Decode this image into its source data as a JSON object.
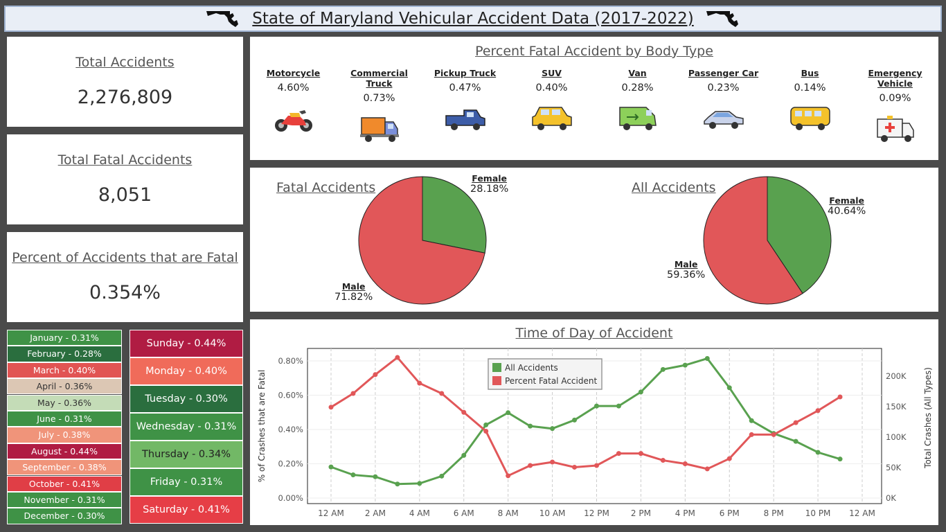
{
  "header": {
    "title": "State of Maryland Vehicular Accident Data (2017-2022)"
  },
  "kpis": {
    "total_accidents": {
      "label": "Total Accidents",
      "value": "2,276,809"
    },
    "total_fatal": {
      "label": "Total Fatal Accidents",
      "value": "8,051"
    },
    "percent_fatal": {
      "label": "Percent of Accidents that are Fatal",
      "value": "0.354%"
    }
  },
  "months": [
    {
      "label": "January - 0.31%",
      "color": "#3f9246"
    },
    {
      "label": "February - 0.28%",
      "color": "#2a6e3e"
    },
    {
      "label": "March - 0.40%",
      "color": "#e15453"
    },
    {
      "label": "April - 0.36%",
      "color": "#dcc7b4"
    },
    {
      "label": "May - 0.36%",
      "color": "#c4dcb7"
    },
    {
      "label": "June - 0.31%",
      "color": "#3f9246"
    },
    {
      "label": "July - 0.38%",
      "color": "#f0947a"
    },
    {
      "label": "August - 0.44%",
      "color": "#b01c43"
    },
    {
      "label": "September - 0.38%",
      "color": "#f0947a"
    },
    {
      "label": "October - 0.41%",
      "color": "#e03e46"
    },
    {
      "label": "November - 0.31%",
      "color": "#3f9246"
    },
    {
      "label": "December - 0.30%",
      "color": "#3f9246"
    }
  ],
  "days": [
    {
      "label": "Sunday - 0.44%",
      "color": "#b01c43"
    },
    {
      "label": "Monday - 0.40%",
      "color": "#f06b5a"
    },
    {
      "label": "Tuesday - 0.30%",
      "color": "#2a6e3e"
    },
    {
      "label": "Wednesday - 0.31%",
      "color": "#3f9246"
    },
    {
      "label": "Thursday - 0.34%",
      "color": "#72b866"
    },
    {
      "label": "Friday - 0.31%",
      "color": "#3f9246"
    },
    {
      "label": "Saturday - 0.41%",
      "color": "#e63e46"
    }
  ],
  "body_types": {
    "title": "Percent Fatal Accident by Body Type",
    "items": [
      {
        "name": "Motorcycle",
        "value": "4.60%",
        "icon": "motorcycle-icon"
      },
      {
        "name": "Commercial Truck",
        "value": "0.73%",
        "icon": "commercial-truck-icon"
      },
      {
        "name": "Pickup Truck",
        "value": "0.47%",
        "icon": "pickup-truck-icon"
      },
      {
        "name": "SUV",
        "value": "0.40%",
        "icon": "suv-icon"
      },
      {
        "name": "Van",
        "value": "0.28%",
        "icon": "van-icon"
      },
      {
        "name": "Passenger Car",
        "value": "0.23%",
        "icon": "passenger-car-icon"
      },
      {
        "name": "Bus",
        "value": "0.14%",
        "icon": "bus-icon"
      },
      {
        "name": "Emergency Vehicle",
        "value": "0.09%",
        "icon": "ambulance-icon"
      }
    ]
  },
  "pies": {
    "fatal": {
      "title": "Fatal Accidents",
      "female_label": "Female",
      "female_value": "28.18%",
      "male_label": "Male",
      "male_value": "71.82%"
    },
    "all": {
      "title": "All Accidents",
      "female_label": "Female",
      "female_value": "40.64%",
      "male_label": "Male",
      "male_value": "59.36%"
    }
  },
  "line_chart": {
    "title": "Time of Day of Accident",
    "ylabel_left": "% of Crashes that are Fatal",
    "ylabel_right": "Total Crashes (All Types)",
    "legend": [
      "All Accidents",
      "Percent Fatal Accident"
    ]
  },
  "chart_data": [
    {
      "type": "pie",
      "title": "Fatal Accidents",
      "categories": [
        "Female",
        "Male"
      ],
      "values": [
        28.18,
        71.82
      ],
      "colors": [
        "#59a14f",
        "#e15759"
      ]
    },
    {
      "type": "pie",
      "title": "All Accidents",
      "categories": [
        "Female",
        "Male"
      ],
      "values": [
        40.64,
        59.36
      ],
      "colors": [
        "#59a14f",
        "#e15759"
      ]
    },
    {
      "type": "line",
      "title": "Time of Day of Accident",
      "x": [
        "12 AM",
        "1 AM",
        "2 AM",
        "3 AM",
        "4 AM",
        "5 AM",
        "6 AM",
        "7 AM",
        "8 AM",
        "9 AM",
        "10 AM",
        "11 AM",
        "12 PM",
        "1 PM",
        "2 PM",
        "3 PM",
        "4 PM",
        "5 PM",
        "6 PM",
        "7 PM",
        "8 PM",
        "9 PM",
        "10 PM",
        "11 PM"
      ],
      "x_tick_labels": [
        "12 AM",
        "2 AM",
        "4 AM",
        "6 AM",
        "8 AM",
        "10 AM",
        "12 PM",
        "2 PM",
        "4 PM",
        "6 PM",
        "8 PM",
        "10 PM",
        "12 AM"
      ],
      "series": [
        {
          "name": "All Accidents",
          "axis": "right",
          "color": "#59a14f",
          "values": [
            51000,
            38000,
            35000,
            23000,
            24000,
            36000,
            70000,
            120000,
            140000,
            118000,
            114000,
            128000,
            151000,
            151000,
            174000,
            211000,
            218000,
            229000,
            181000,
            127000,
            106000,
            93000,
            75000,
            64000
          ]
        },
        {
          "name": "Percent Fatal Accident",
          "axis": "left",
          "color": "#e15759",
          "values": [
            0.53,
            0.61,
            0.72,
            0.82,
            0.67,
            0.61,
            0.5,
            0.39,
            0.13,
            0.19,
            0.21,
            0.18,
            0.19,
            0.26,
            0.26,
            0.22,
            0.2,
            0.17,
            0.23,
            0.37,
            0.37,
            0.44,
            0.51,
            0.59
          ]
        }
      ],
      "ylim_left": [
        0,
        0.8
      ],
      "yticks_left": [
        "0.00%",
        "0.20%",
        "0.40%",
        "0.60%",
        "0.80%"
      ],
      "ylim_right": [
        0,
        200000
      ],
      "yticks_right": [
        "0K",
        "50K",
        "100K",
        "150K",
        "200K"
      ],
      "xlabel": "",
      "ylabel": "% of Crashes that are Fatal",
      "ylabel_right": "Total Crashes (All Types)",
      "grid": true,
      "legend_position": "top-center"
    }
  ]
}
